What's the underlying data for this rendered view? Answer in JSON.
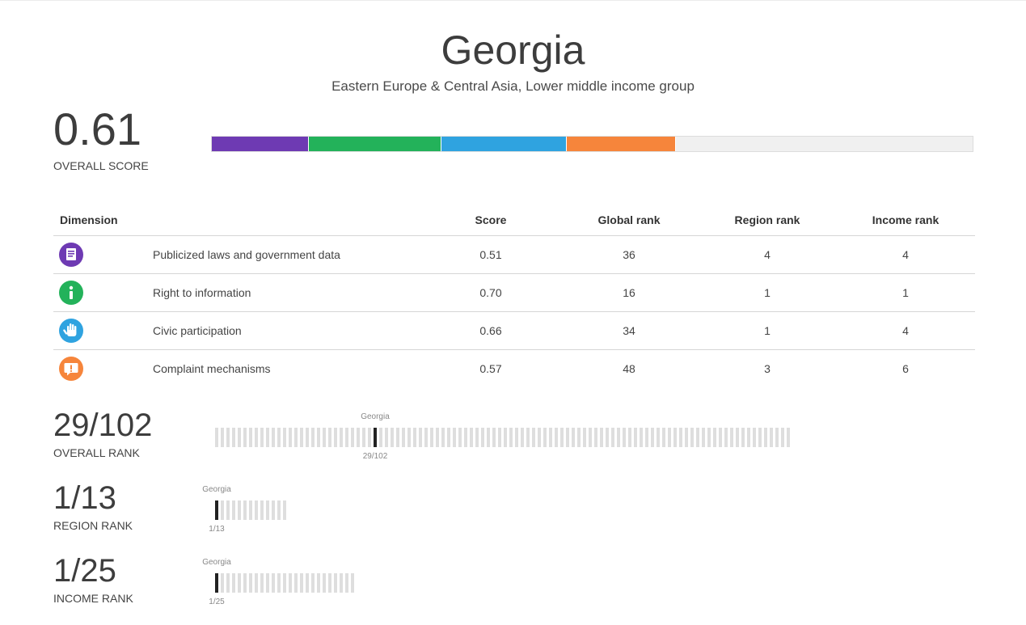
{
  "country": {
    "name": "Georgia",
    "subtitle": "Eastern Europe & Central Asia, Lower middle income group"
  },
  "overall": {
    "score": "0.61",
    "score_label": "OVERALL SCORE",
    "segments": [
      {
        "dimension": "Publicized laws and government data",
        "color": "#6e3ab3",
        "fraction": 0.127
      },
      {
        "dimension": "Right to information",
        "color": "#23b25a",
        "fraction": 0.175
      },
      {
        "dimension": "Civic participation",
        "color": "#2fa3e0",
        "fraction": 0.165
      },
      {
        "dimension": "Complaint mechanisms",
        "color": "#f6853b",
        "fraction": 0.143
      }
    ]
  },
  "table": {
    "headers": {
      "dimension": "Dimension",
      "score": "Score",
      "global_rank": "Global rank",
      "region_rank": "Region rank",
      "income_rank": "Income rank"
    },
    "rows": [
      {
        "icon": "document-icon",
        "color": "#6e3ab3",
        "label": "Publicized laws and government data",
        "score": "0.51",
        "global_rank": "36",
        "region_rank": "4",
        "income_rank": "4"
      },
      {
        "icon": "info-icon",
        "color": "#23b25a",
        "label": "Right to information",
        "score": "0.70",
        "global_rank": "16",
        "region_rank": "1",
        "income_rank": "1"
      },
      {
        "icon": "hand-icon",
        "color": "#2fa3e0",
        "label": "Civic participation",
        "score": "0.66",
        "global_rank": "34",
        "region_rank": "1",
        "income_rank": "4"
      },
      {
        "icon": "complaint-icon",
        "color": "#f6853b",
        "label": "Complaint mechanisms",
        "score": "0.57",
        "global_rank": "48",
        "region_rank": "3",
        "income_rank": "6"
      }
    ]
  },
  "ranks": {
    "overall": {
      "value": "29/102",
      "caption": "OVERALL RANK",
      "marker": "Georgia",
      "rank": 29,
      "total": 102,
      "bottom_label": "29/102"
    },
    "region": {
      "value": "1/13",
      "caption": "REGION RANK",
      "marker": "Georgia",
      "rank": 1,
      "total": 13,
      "bottom_label": "1/13"
    },
    "income": {
      "value": "1/25",
      "caption": "INCOME RANK",
      "marker": "Georgia",
      "rank": 1,
      "total": 25,
      "bottom_label": "1/25"
    }
  }
}
